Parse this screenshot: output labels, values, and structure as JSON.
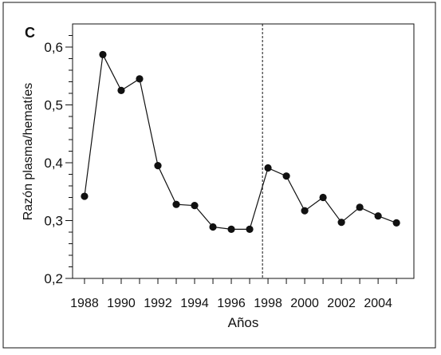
{
  "chart_data": {
    "type": "line",
    "panel_label": "C",
    "title": "",
    "xlabel": "Años",
    "ylabel": "Razón plasma/hematíes",
    "xlim": [
      1987.35,
      2005.95
    ],
    "ylim": [
      0.2,
      0.64
    ],
    "xticks": [
      1988,
      1989,
      1990,
      1991,
      1992,
      1993,
      1994,
      1995,
      1996,
      1997,
      1998,
      1999,
      2000,
      2001,
      2002,
      2003,
      2004,
      2005
    ],
    "xtick_labels": [
      "1988",
      "1990",
      "1992",
      "1994",
      "1996",
      "1998",
      "2000",
      "2002",
      "2004"
    ],
    "xtick_label_values": [
      1988,
      1990,
      1992,
      1994,
      1996,
      1998,
      2000,
      2002,
      2004
    ],
    "yticks": [
      0.2,
      0.3,
      0.4,
      0.5,
      0.6
    ],
    "ytick_labels": [
      "0,2",
      "0,3",
      "0,4",
      "0,5",
      "0,6"
    ],
    "yminor_ticks": [
      0.22,
      0.24,
      0.26,
      0.28,
      0.32,
      0.34,
      0.36,
      0.38,
      0.42,
      0.44,
      0.46,
      0.48,
      0.52,
      0.54,
      0.56,
      0.58,
      0.62
    ],
    "grid": false,
    "reference_line_x": 1997.7,
    "series": [
      {
        "x": [
          1988,
          1989,
          1990,
          1991,
          1992,
          1993,
          1994,
          1995,
          1996,
          1997,
          1998,
          1999,
          2000,
          2001,
          2002,
          2003,
          2004,
          2005
        ],
        "values": [
          0.342,
          0.587,
          0.525,
          0.545,
          0.395,
          0.328,
          0.326,
          0.289,
          0.285,
          0.285,
          0.391,
          0.377,
          0.317,
          0.34,
          0.297,
          0.323,
          0.308,
          0.296
        ]
      }
    ],
    "colors": {
      "marker": "#111111",
      "line": "#111111",
      "frame": "#111111"
    }
  }
}
